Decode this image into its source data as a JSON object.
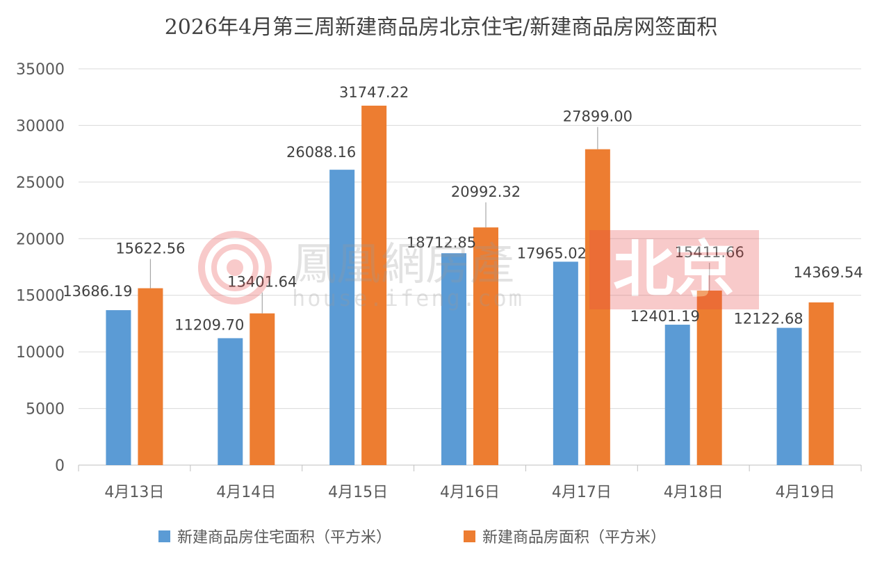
{
  "chart_data": {
    "type": "bar",
    "title": "2026年4月第三周新建商品房北京住宅/新建商品房网签面积",
    "categories": [
      "4月13日",
      "4月14日",
      "4月15日",
      "4月16日",
      "4月17日",
      "4月18日",
      "4月19日"
    ],
    "series": [
      {
        "name": "新建商品房住宅面积（平方米）",
        "color": "#5b9bd5",
        "values": [
          13686.19,
          11209.7,
          26088.16,
          18712.85,
          17965.02,
          12401.19,
          12122.68
        ],
        "labels": [
          "13686.19",
          "11209.70",
          "26088.16",
          "18712.85",
          "17965.02",
          "12401.19",
          "12122.68"
        ]
      },
      {
        "name": "新建商品房面积（平方米）",
        "color": "#ed7d31",
        "values": [
          15622.56,
          13401.64,
          31747.22,
          20992.32,
          27899.0,
          15411.66,
          14369.54
        ],
        "labels": [
          "15622.56",
          "13401.64",
          "31747.22",
          "20992.32",
          "27899.00",
          "15411.66",
          "14369.54"
        ]
      }
    ],
    "ylim": [
      0,
      35000
    ],
    "yticks": [
      0,
      5000,
      10000,
      15000,
      20000,
      25000,
      30000,
      35000
    ],
    "grid": true,
    "legend": "bottom",
    "xlabel": "",
    "ylabel": ""
  },
  "watermark": {
    "icon": "phoenix-logo-icon",
    "brand": "鳳凰網房產",
    "url": "house.ifeng.com",
    "city": "北京",
    "color": "#e84545"
  }
}
